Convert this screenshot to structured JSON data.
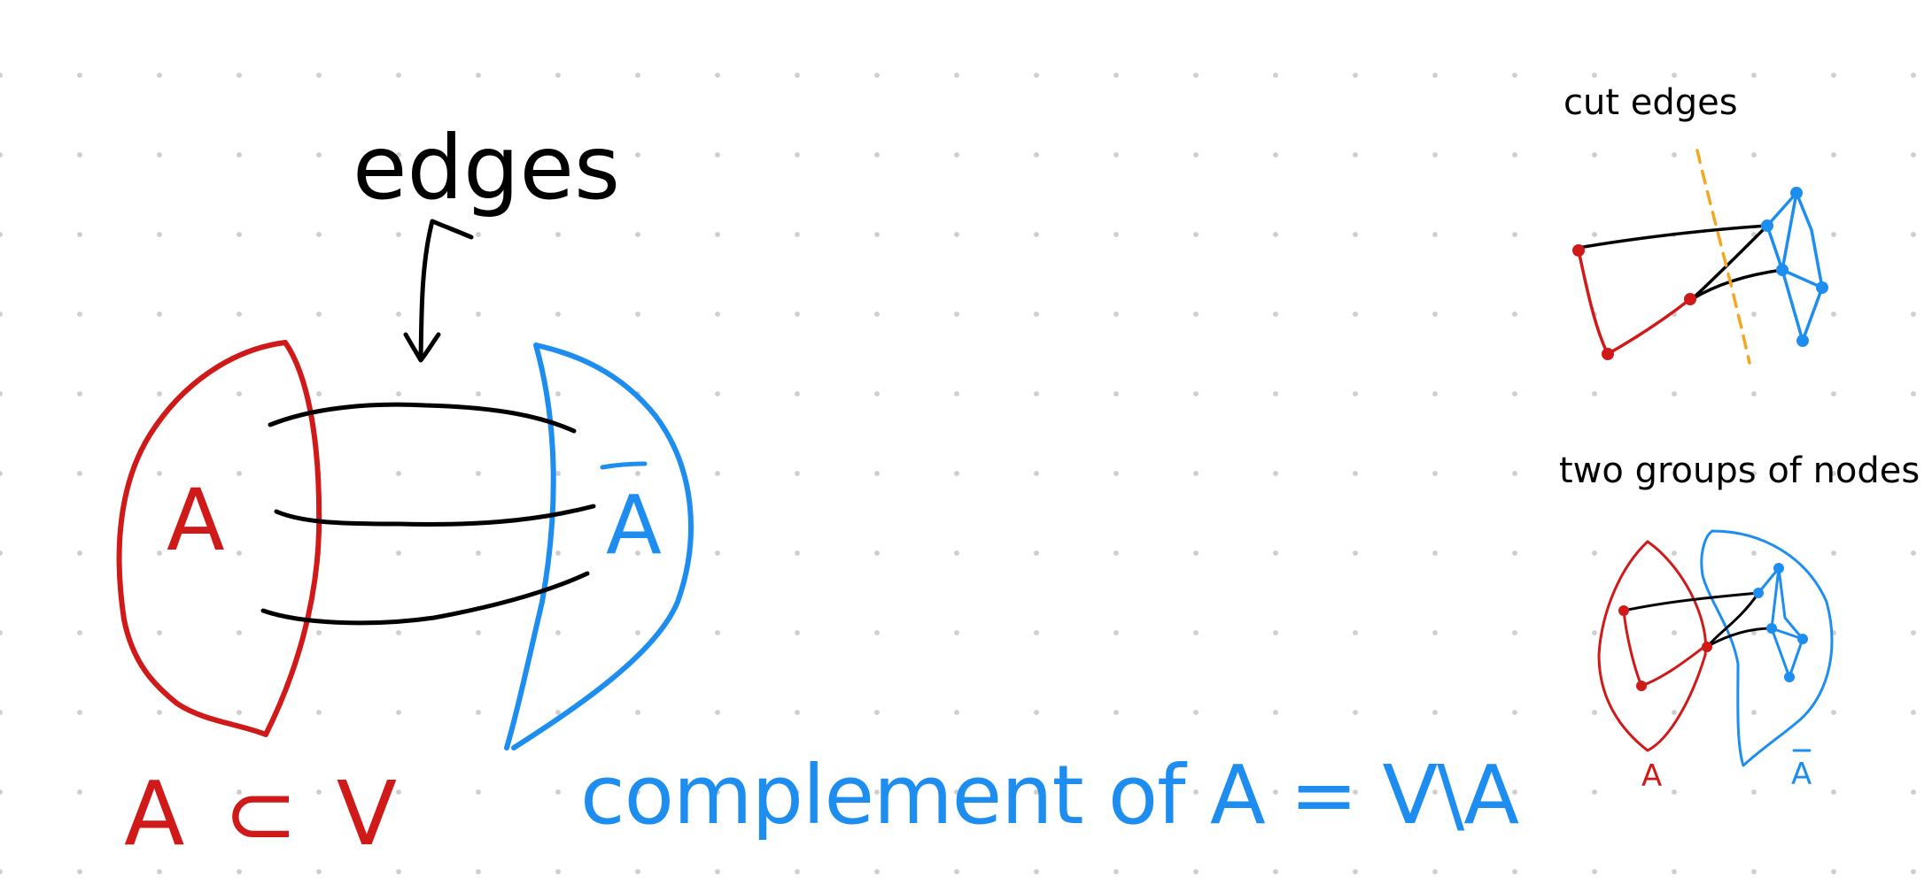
{
  "canvas": {
    "background": "#ffffff",
    "grid_dot_color": "#cfcfcf"
  },
  "colors": {
    "ink": "#000000",
    "set_a": "#d01a1a",
    "set_a_complement": "#1d8ef0",
    "cut_line": "#f5a623"
  },
  "main_diagram": {
    "edges_label": "edges",
    "set_a_label": "A",
    "complement_label": "A",
    "subset_label": "A ⊂ V",
    "complement_definition": "complement of A = V\\A"
  },
  "side_panel": {
    "cut_edges_title": "cut edges",
    "groups_title": "two groups of nodes",
    "group_a_label": "A",
    "group_complement_label": "A"
  }
}
